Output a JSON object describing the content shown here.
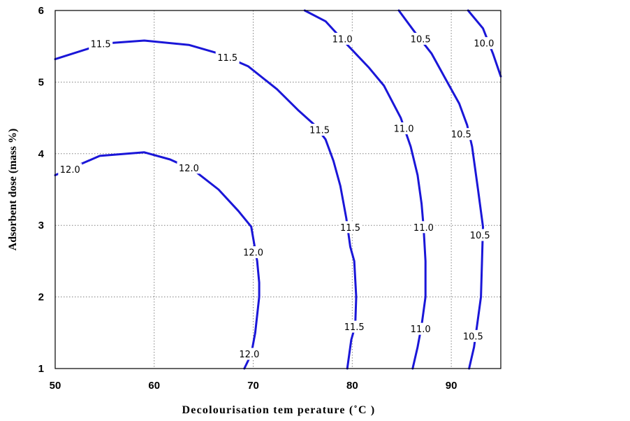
{
  "chart_data": {
    "type": "contour",
    "title": "",
    "xlabel": "Decolourisation tem perature (˚C )",
    "ylabel": "Adsorbent dose (mass %)",
    "xlim": [
      50,
      95
    ],
    "ylim": [
      1,
      6
    ],
    "xticks": [
      50,
      60,
      70,
      80,
      90
    ],
    "yticks": [
      1,
      2,
      3,
      4,
      5,
      6
    ],
    "x_tick_labels": [
      "50",
      "60",
      "70",
      "80",
      "90"
    ],
    "y_tick_labels": [
      "1",
      "2",
      "3",
      "4",
      "5",
      "6"
    ],
    "grid": true,
    "color": "#1a16d8",
    "contours": [
      {
        "level": "12.0",
        "points": [
          [
            50,
            3.7
          ],
          [
            54.5,
            3.97
          ],
          [
            59,
            4.02
          ],
          [
            61.6,
            3.92
          ],
          [
            64,
            3.77
          ],
          [
            66.5,
            3.5
          ],
          [
            68.5,
            3.2
          ],
          [
            69.8,
            2.98
          ],
          [
            70.4,
            2.5
          ],
          [
            70.6,
            2.2
          ],
          [
            70.6,
            2.0
          ],
          [
            70.2,
            1.5
          ],
          [
            69.8,
            1.2
          ],
          [
            69.1,
            1.0
          ]
        ],
        "labels": [
          {
            "text": "12.0",
            "x": 51.5,
            "y": 3.78
          },
          {
            "text": "12.0",
            "x": 63.5,
            "y": 3.8
          },
          {
            "text": "12.0",
            "x": 70.0,
            "y": 2.62
          },
          {
            "text": "12.0",
            "x": 69.6,
            "y": 1.2
          }
        ]
      },
      {
        "level": "11.5",
        "points": [
          [
            50,
            5.32
          ],
          [
            55,
            5.54
          ],
          [
            59,
            5.58
          ],
          [
            63.5,
            5.52
          ],
          [
            66.5,
            5.4
          ],
          [
            69.5,
            5.22
          ],
          [
            72.4,
            4.9
          ],
          [
            74.6,
            4.6
          ],
          [
            76.2,
            4.4
          ],
          [
            77.3,
            4.2
          ],
          [
            78.1,
            3.9
          ],
          [
            78.8,
            3.55
          ],
          [
            79.4,
            3.1
          ],
          [
            79.8,
            2.7
          ],
          [
            80.2,
            2.5
          ],
          [
            80.4,
            2.0
          ],
          [
            80.3,
            1.6
          ],
          [
            79.9,
            1.4
          ],
          [
            79.5,
            1.0
          ]
        ],
        "labels": [
          {
            "text": "11.5",
            "x": 54.6,
            "y": 5.53
          },
          {
            "text": "11.5",
            "x": 67.4,
            "y": 5.34
          },
          {
            "text": "11.5",
            "x": 76.7,
            "y": 4.33
          },
          {
            "text": "11.5",
            "x": 79.8,
            "y": 2.97
          },
          {
            "text": "11.5",
            "x": 80.2,
            "y": 1.58
          }
        ]
      },
      {
        "level": "11.0",
        "points": [
          [
            75.2,
            6.0
          ],
          [
            77.3,
            5.85
          ],
          [
            79.3,
            5.55
          ],
          [
            81.7,
            5.2
          ],
          [
            83.2,
            4.95
          ],
          [
            84.9,
            4.5
          ],
          [
            85.9,
            4.1
          ],
          [
            86.6,
            3.7
          ],
          [
            87.0,
            3.3
          ],
          [
            87.2,
            2.98
          ],
          [
            87.4,
            2.5
          ],
          [
            87.4,
            2.0
          ],
          [
            87.0,
            1.6
          ],
          [
            86.6,
            1.3
          ],
          [
            86.1,
            1.0
          ]
        ],
        "labels": [
          {
            "text": "11.0",
            "x": 79.0,
            "y": 5.6
          },
          {
            "text": "11.0",
            "x": 85.2,
            "y": 4.35
          },
          {
            "text": "11.0",
            "x": 87.2,
            "y": 2.97
          },
          {
            "text": "11.0",
            "x": 86.9,
            "y": 1.55
          }
        ]
      },
      {
        "level": "10.5",
        "points": [
          [
            84.7,
            6.0
          ],
          [
            86.3,
            5.7
          ],
          [
            88.0,
            5.4
          ],
          [
            89.6,
            5.0
          ],
          [
            90.8,
            4.7
          ],
          [
            91.6,
            4.4
          ],
          [
            92.1,
            4.1
          ],
          [
            92.7,
            3.5
          ],
          [
            93.2,
            2.98
          ],
          [
            93.1,
            2.5
          ],
          [
            93.0,
            2.0
          ],
          [
            92.6,
            1.6
          ],
          [
            92.3,
            1.3
          ],
          [
            91.8,
            1.0
          ]
        ],
        "labels": [
          {
            "text": "10.5",
            "x": 86.9,
            "y": 5.6
          },
          {
            "text": "10.5",
            "x": 91.0,
            "y": 4.27
          },
          {
            "text": "10.5",
            "x": 92.9,
            "y": 2.86
          },
          {
            "text": "10.5",
            "x": 92.2,
            "y": 1.45
          }
        ]
      },
      {
        "level": "10.0",
        "points": [
          [
            91.7,
            6.0
          ],
          [
            93.2,
            5.75
          ],
          [
            94.2,
            5.4
          ],
          [
            95,
            5.08
          ]
        ],
        "labels": [
          {
            "text": "10.0",
            "x": 93.3,
            "y": 5.54
          }
        ]
      }
    ]
  }
}
